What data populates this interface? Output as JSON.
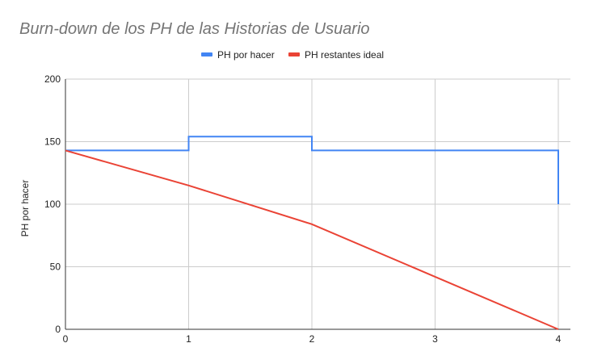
{
  "chart_data": {
    "type": "line",
    "title": "Burn-down de los PH de las Historias de Usuario",
    "xlabel": "",
    "ylabel": "PH por hacer",
    "xlim": [
      0,
      4
    ],
    "ylim": [
      0,
      200
    ],
    "x_ticks": [
      "0",
      "1",
      "2",
      "3",
      "4"
    ],
    "y_ticks": [
      "0",
      "50",
      "100",
      "150",
      "200"
    ],
    "grid": true,
    "legend_position": "top",
    "series": [
      {
        "name": "PH por hacer",
        "color": "#4285f4",
        "step": true,
        "points": [
          [
            0,
            143
          ],
          [
            1,
            143
          ],
          [
            1,
            154
          ],
          [
            2,
            154
          ],
          [
            2,
            143
          ],
          [
            4,
            143
          ],
          [
            4,
            100
          ]
        ]
      },
      {
        "name": "PH restantes ideal",
        "color": "#ea4335",
        "step": false,
        "points": [
          [
            0,
            143
          ],
          [
            1,
            115
          ],
          [
            2,
            84
          ],
          [
            3,
            42
          ],
          [
            4,
            0
          ]
        ]
      }
    ]
  }
}
